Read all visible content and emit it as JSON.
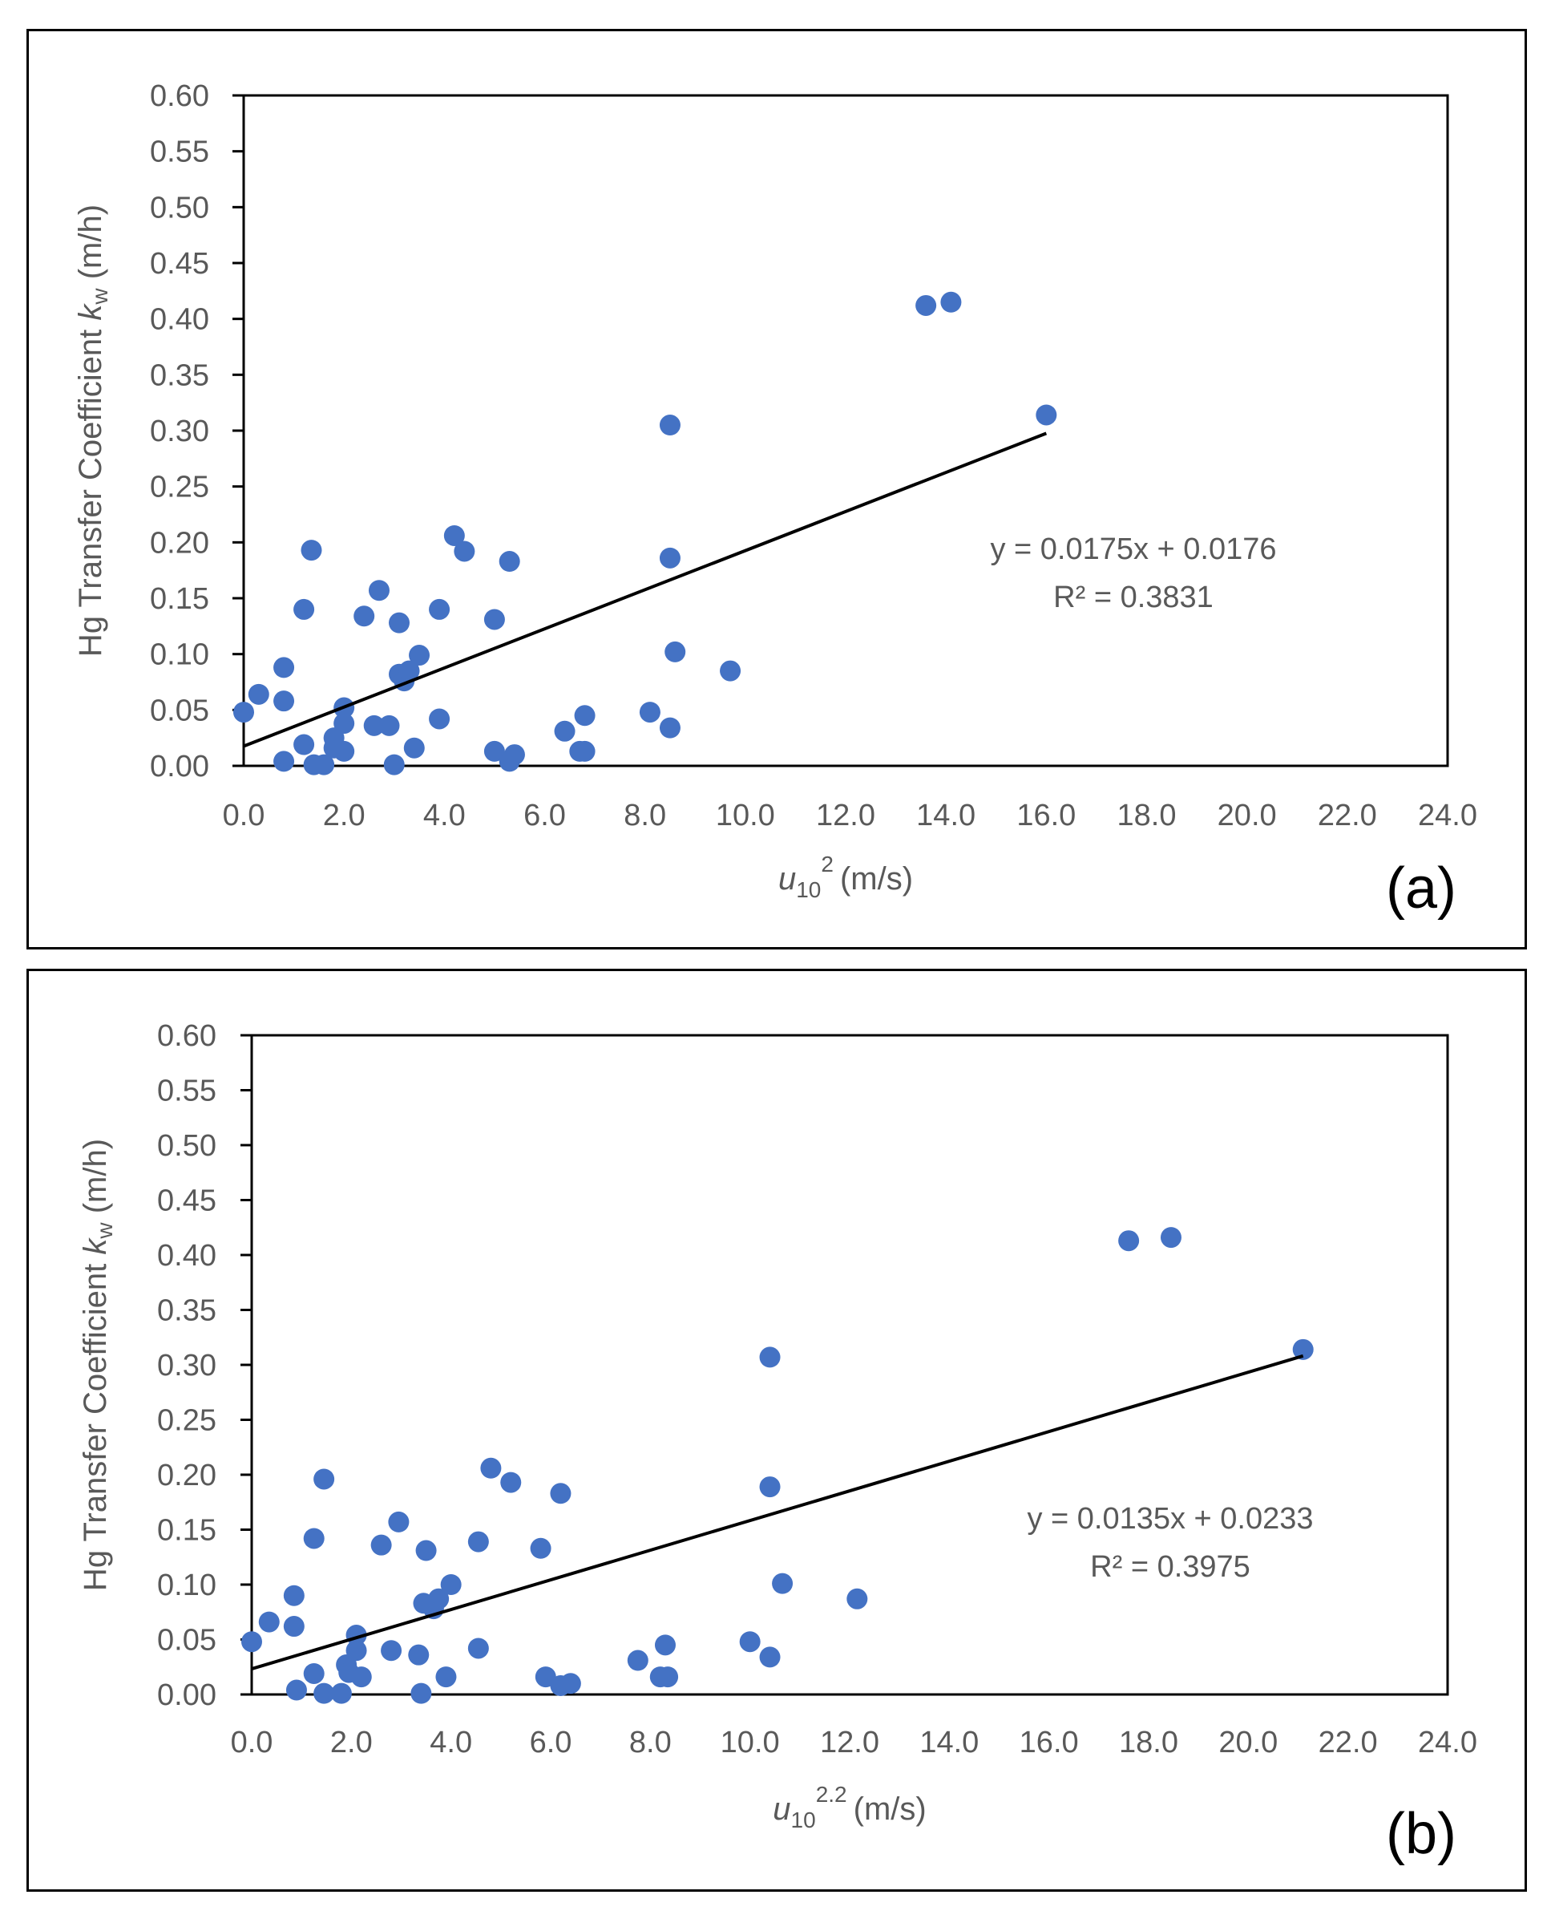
{
  "chart_data": [
    {
      "type": "scatter",
      "panel_label": "(a)",
      "title": "",
      "xlabel_var": "u",
      "xlabel_sub": "10",
      "xlabel_sup": "2",
      "xlabel_unit": "(m/s)",
      "ylabel_text": "Hg Transfer Coefficient ",
      "ylabel_var": "k",
      "ylabel_sub": "w",
      "ylabel_unit": " (m/h)",
      "xlim": [
        0,
        24
      ],
      "ylim": [
        0,
        0.6
      ],
      "x_ticks": [
        "0.0",
        "2.0",
        "4.0",
        "6.0",
        "8.0",
        "10.0",
        "12.0",
        "14.0",
        "16.0",
        "18.0",
        "20.0",
        "22.0",
        "24.0"
      ],
      "y_ticks": [
        "0.00",
        "0.05",
        "0.10",
        "0.15",
        "0.20",
        "0.25",
        "0.30",
        "0.35",
        "0.40",
        "0.45",
        "0.50",
        "0.55",
        "0.60"
      ],
      "trendline": {
        "slope": 0.0175,
        "intercept": 0.0176,
        "x_range": [
          0,
          16.0
        ]
      },
      "equation_label": "y = 0.0175x + 0.0176",
      "r2_label": "R² = 0.3831",
      "marker_color": "#4472c4",
      "series": [
        {
          "name": "kw",
          "points": [
            [
              0.0,
              0.048
            ],
            [
              0.3,
              0.064
            ],
            [
              0.8,
              0.088
            ],
            [
              0.8,
              0.058
            ],
            [
              0.8,
              0.004
            ],
            [
              1.2,
              0.019
            ],
            [
              1.2,
              0.14
            ],
            [
              1.35,
              0.193
            ],
            [
              1.4,
              0.001
            ],
            [
              1.6,
              0.001
            ],
            [
              1.8,
              0.025
            ],
            [
              1.8,
              0.016
            ],
            [
              2.0,
              0.052
            ],
            [
              2.0,
              0.038
            ],
            [
              2.0,
              0.013
            ],
            [
              2.4,
              0.134
            ],
            [
              2.6,
              0.036
            ],
            [
              2.7,
              0.157
            ],
            [
              2.9,
              0.036
            ],
            [
              3.0,
              0.001
            ],
            [
              3.1,
              0.082
            ],
            [
              3.1,
              0.128
            ],
            [
              3.2,
              0.076
            ],
            [
              3.3,
              0.085
            ],
            [
              3.4,
              0.016
            ],
            [
              3.5,
              0.099
            ],
            [
              3.9,
              0.14
            ],
            [
              3.9,
              0.042
            ],
            [
              4.2,
              0.206
            ],
            [
              4.4,
              0.192
            ],
            [
              5.0,
              0.131
            ],
            [
              5.0,
              0.013
            ],
            [
              5.3,
              0.183
            ],
            [
              5.3,
              0.004
            ],
            [
              5.4,
              0.01
            ],
            [
              6.4,
              0.031
            ],
            [
              6.7,
              0.013
            ],
            [
              6.8,
              0.013
            ],
            [
              6.8,
              0.045
            ],
            [
              8.1,
              0.048
            ],
            [
              8.5,
              0.186
            ],
            [
              8.5,
              0.034
            ],
            [
              8.5,
              0.305
            ],
            [
              8.6,
              0.102
            ],
            [
              9.7,
              0.085
            ],
            [
              13.6,
              0.412
            ],
            [
              14.1,
              0.415
            ],
            [
              16.0,
              0.314
            ]
          ]
        }
      ]
    },
    {
      "type": "scatter",
      "panel_label": "(b)",
      "title": "",
      "xlabel_var": "u",
      "xlabel_sub": "10",
      "xlabel_sup": "2.2",
      "xlabel_unit": "(m/s)",
      "ylabel_text": "Hg Transfer Coefficient ",
      "ylabel_var": "k",
      "ylabel_sub": "w",
      "ylabel_unit": " (m/h)",
      "xlim": [
        0,
        24
      ],
      "ylim": [
        0,
        0.6
      ],
      "x_ticks": [
        "0.0",
        "2.0",
        "4.0",
        "6.0",
        "8.0",
        "10.0",
        "12.0",
        "14.0",
        "16.0",
        "18.0",
        "20.0",
        "22.0",
        "24.0"
      ],
      "y_ticks": [
        "0.00",
        "0.05",
        "0.10",
        "0.15",
        "0.20",
        "0.25",
        "0.30",
        "0.35",
        "0.40",
        "0.45",
        "0.50",
        "0.55",
        "0.60"
      ],
      "trendline": {
        "slope": 0.0135,
        "intercept": 0.0233,
        "x_range": [
          0,
          21.1
        ]
      },
      "equation_label": "y = 0.0135x + 0.0233",
      "r2_label": "R² = 0.3975",
      "marker_color": "#4472c4",
      "series": [
        {
          "name": "kw",
          "points": [
            [
              0.0,
              0.048
            ],
            [
              0.35,
              0.066
            ],
            [
              0.85,
              0.09
            ],
            [
              0.85,
              0.062
            ],
            [
              0.9,
              0.004
            ],
            [
              1.25,
              0.019
            ],
            [
              1.25,
              0.142
            ],
            [
              1.45,
              0.196
            ],
            [
              1.45,
              0.001
            ],
            [
              1.8,
              0.001
            ],
            [
              1.9,
              0.027
            ],
            [
              1.95,
              0.02
            ],
            [
              2.1,
              0.054
            ],
            [
              2.1,
              0.04
            ],
            [
              2.2,
              0.016
            ],
            [
              2.6,
              0.136
            ],
            [
              2.8,
              0.04
            ],
            [
              2.95,
              0.157
            ],
            [
              3.35,
              0.036
            ],
            [
              3.4,
              0.001
            ],
            [
              3.45,
              0.083
            ],
            [
              3.5,
              0.131
            ],
            [
              3.65,
              0.078
            ],
            [
              3.75,
              0.087
            ],
            [
              3.9,
              0.016
            ],
            [
              4.0,
              0.1
            ],
            [
              4.55,
              0.139
            ],
            [
              4.55,
              0.042
            ],
            [
              4.8,
              0.206
            ],
            [
              5.2,
              0.193
            ],
            [
              5.8,
              0.133
            ],
            [
              5.9,
              0.016
            ],
            [
              6.2,
              0.183
            ],
            [
              6.2,
              0.008
            ],
            [
              6.4,
              0.01
            ],
            [
              7.75,
              0.031
            ],
            [
              8.2,
              0.016
            ],
            [
              8.35,
              0.016
            ],
            [
              8.3,
              0.045
            ],
            [
              10.0,
              0.048
            ],
            [
              10.4,
              0.189
            ],
            [
              10.4,
              0.034
            ],
            [
              10.4,
              0.307
            ],
            [
              10.65,
              0.101
            ],
            [
              12.15,
              0.087
            ],
            [
              17.6,
              0.413
            ],
            [
              18.45,
              0.416
            ],
            [
              21.1,
              0.314
            ]
          ]
        }
      ]
    }
  ]
}
